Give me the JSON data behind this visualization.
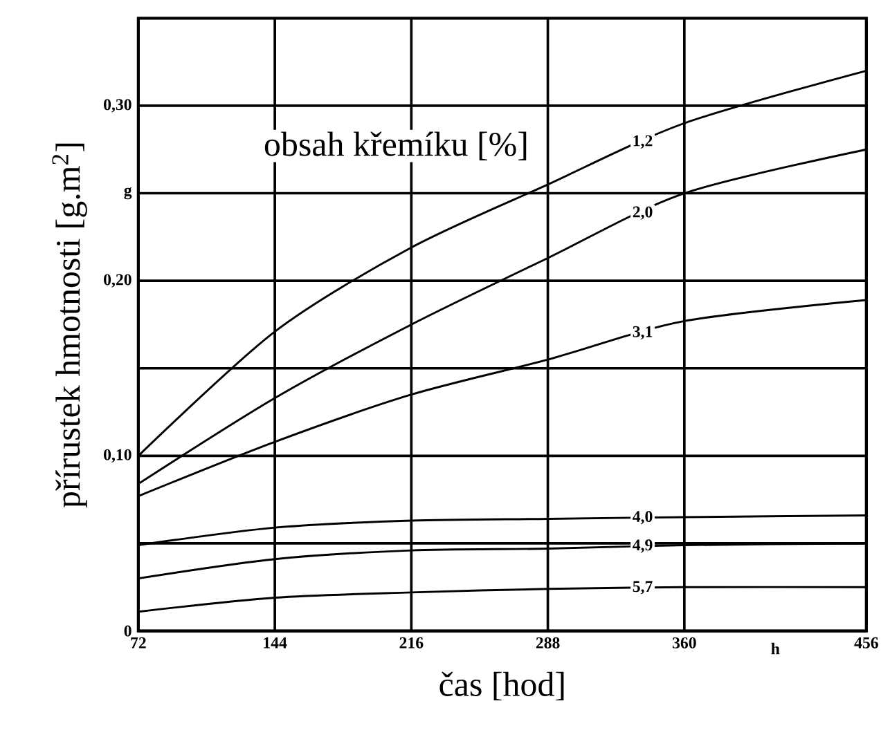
{
  "chart_data": {
    "type": "line",
    "xlabel": "čas [hod]",
    "ylabel": "přírustek hmotnosti [g.m$^{2}$]",
    "annotations": [
      "obsah křemíku [%]",
      "h"
    ],
    "x": [
      72,
      144,
      216,
      288,
      360,
      456
    ],
    "series": [
      {
        "name": "1,2",
        "color": "#000000",
        "values": [
          0.1,
          0.171,
          0.219,
          0.255,
          0.29,
          0.32
        ]
      },
      {
        "name": "2,0",
        "color": "#000000",
        "values": [
          0.084,
          0.133,
          0.175,
          0.213,
          0.25,
          0.275
        ]
      },
      {
        "name": "3,1",
        "color": "#000000",
        "values": [
          0.077,
          0.108,
          0.135,
          0.155,
          0.177,
          0.189
        ]
      },
      {
        "name": "4,0",
        "color": "#000000",
        "values": [
          0.049,
          0.059,
          0.063,
          0.064,
          0.065,
          0.066
        ]
      },
      {
        "name": "4,9",
        "color": "#000000",
        "values": [
          0.03,
          0.041,
          0.046,
          0.047,
          0.049,
          0.05
        ]
      },
      {
        "name": "5,7",
        "color": "#000000",
        "values": [
          0.011,
          0.019,
          0.022,
          0.024,
          0.025,
          0.025
        ]
      }
    ],
    "xlim": [
      72,
      456
    ],
    "xticks": [
      72,
      144,
      216,
      288,
      360,
      456
    ],
    "ylim": [
      0,
      0.35
    ],
    "yticks": [
      0,
      {
        "value": 0.05,
        "label": null
      },
      {
        "value": 0.1,
        "label": "0,10"
      },
      {
        "value": 0.15,
        "label": null
      },
      {
        "value": 0.2,
        "label": "0,20"
      },
      {
        "value": 0.25,
        "label": "g"
      },
      {
        "value": 0.3,
        "label": "0,30"
      }
    ],
    "grid": true,
    "marker": "none",
    "line_style": "solid"
  }
}
